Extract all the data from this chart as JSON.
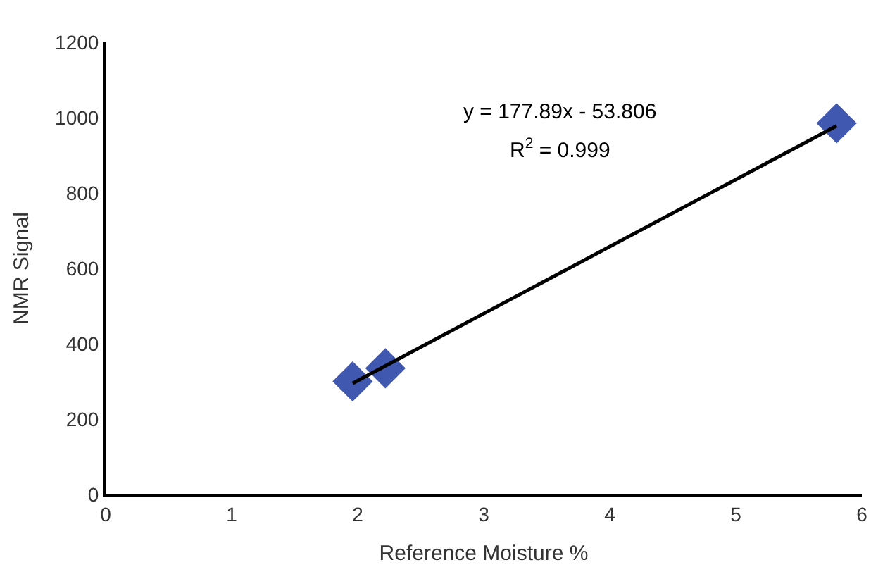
{
  "chart_data": {
    "type": "scatter",
    "xlabel": "Reference Moisture %",
    "ylabel": "NMR Signal",
    "xlim": [
      0,
      6
    ],
    "xticks": [
      0,
      1,
      2,
      3,
      4,
      5,
      6
    ],
    "ylim": [
      0,
      1200
    ],
    "yticks": [
      0,
      200,
      400,
      600,
      800,
      1000,
      1200
    ],
    "marker": "diamond",
    "series": [
      {
        "color": "#4058b0",
        "x": [
          1.96,
          2.22,
          5.8
        ],
        "values": [
          300,
          335,
          985
        ]
      },
      {
        "type": "line",
        "color": "#000000",
        "marker": "none",
        "line_style": "solid",
        "x": [
          1.96,
          5.8
        ],
        "values": [
          295,
          978
        ]
      }
    ],
    "annotations": [
      "y = 177.89x - 53.806",
      "R$^{2}$ = 0.999"
    ]
  }
}
